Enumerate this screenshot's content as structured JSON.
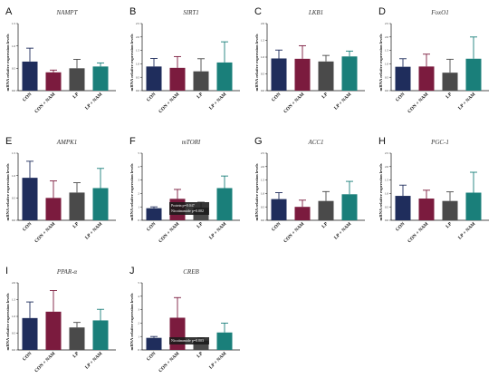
{
  "colors": {
    "CON": "#1f2d5c",
    "CON + NAM": "#7b1b3e",
    "LP": "#4a4a4a",
    "LP + NAM": "#1a7f7a"
  },
  "chart_data": [
    {
      "type": "bar",
      "letter": "A",
      "gene": "NAMPT",
      "ylabel": "mRNA relative expression levels",
      "categories": [
        "CON",
        "CON + NAM",
        "LP",
        "LP + NAM"
      ],
      "ylim": [
        0,
        1.5
      ],
      "yticks": [
        "0.0",
        "0.5",
        "1.0",
        "1.5"
      ],
      "values": [
        0.65,
        0.41,
        0.5,
        0.54
      ],
      "errors": [
        0.3,
        0.05,
        0.2,
        0.08
      ]
    },
    {
      "type": "bar",
      "letter": "B",
      "gene": "SIRT1",
      "ylabel": "mRNA relative expression levels",
      "categories": [
        "CON",
        "CON + NAM",
        "LP",
        "LP + NAM"
      ],
      "ylim": [
        0,
        2.5
      ],
      "yticks": [
        "0.0",
        "0.5",
        "1.0",
        "1.5",
        "2.0",
        "2.5"
      ],
      "values": [
        0.9,
        0.85,
        0.72,
        1.05
      ],
      "errors": [
        0.3,
        0.42,
        0.47,
        0.77
      ]
    },
    {
      "type": "bar",
      "letter": "C",
      "gene": "LKB1",
      "ylabel": "mRNA relative expression levels",
      "categories": [
        "CON",
        "CON + NAM",
        "LP",
        "LP + NAM"
      ],
      "ylim": [
        0,
        2.0
      ],
      "yticks": [
        "0.0",
        "0.5",
        "1.0",
        "1.5",
        "2.0"
      ],
      "values": [
        0.96,
        0.95,
        0.87,
        1.02
      ],
      "errors": [
        0.25,
        0.39,
        0.18,
        0.16
      ]
    },
    {
      "type": "bar",
      "letter": "D",
      "gene": "FoxO1",
      "ylabel": "mRNA relative expression levels",
      "categories": [
        "CON",
        "CON + NAM",
        "LP",
        "LP + NAM"
      ],
      "ylim": [
        0,
        2.5
      ],
      "yticks": [
        "0.0",
        "0.5",
        "1.0",
        "1.5",
        "2.0",
        "2.5"
      ],
      "values": [
        0.89,
        0.9,
        0.67,
        1.19
      ],
      "errors": [
        0.3,
        0.46,
        0.5,
        0.81
      ]
    },
    {
      "type": "bar",
      "letter": "E",
      "gene": "AMPK1",
      "ylabel": "mRNA relative expression levels",
      "categories": [
        "CON",
        "CON + NAM",
        "LP",
        "LP + NAM"
      ],
      "ylim": [
        0,
        1.5
      ],
      "yticks": [
        "0.0",
        "0.5",
        "1.0",
        "1.5"
      ],
      "values": [
        0.95,
        0.5,
        0.62,
        0.72
      ],
      "errors": [
        0.37,
        0.38,
        0.22,
        0.44
      ]
    },
    {
      "type": "bar",
      "letter": "F",
      "gene": "mTORI",
      "ylabel": "mRNA relative expression levels",
      "categories": [
        "CON",
        "CON + NAM",
        "LP",
        "LP + NAM"
      ],
      "ylim": [
        0,
        5
      ],
      "yticks": [
        "0",
        "1",
        "2",
        "3",
        "4",
        "5"
      ],
      "values": [
        0.9,
        1.6,
        0.95,
        2.4
      ],
      "errors": [
        0.1,
        0.7,
        0.4,
        0.9
      ],
      "annotations": [
        "Protein p=0.047",
        "Nicotinamide p=0.002"
      ]
    },
    {
      "type": "bar",
      "letter": "G",
      "gene": "ACC1",
      "ylabel": "mRNA relative expression levels",
      "categories": [
        "CON",
        "CON + NAM",
        "LP",
        "LP + NAM"
      ],
      "ylim": [
        0,
        2.5
      ],
      "yticks": [
        "0.0",
        "0.5",
        "1.0",
        "1.5",
        "2.0",
        "2.5"
      ],
      "values": [
        0.79,
        0.5,
        0.72,
        0.97
      ],
      "errors": [
        0.24,
        0.25,
        0.35,
        0.48
      ]
    },
    {
      "type": "bar",
      "letter": "H",
      "gene": "PGC-1",
      "ylabel": "mRNA relative expression levels",
      "categories": [
        "CON",
        "CON + NAM",
        "LP",
        "LP + NAM"
      ],
      "ylim": [
        0,
        2.5
      ],
      "yticks": [
        "0.0",
        "0.5",
        "1.0",
        "1.5",
        "2.0",
        "2.5"
      ],
      "values": [
        0.91,
        0.81,
        0.72,
        1.03
      ],
      "errors": [
        0.4,
        0.31,
        0.34,
        0.76
      ]
    },
    {
      "type": "bar",
      "letter": "I",
      "gene": "PPAR-α",
      "ylabel": "mRNA relative expression levels",
      "categories": [
        "CON",
        "CON + NAM",
        "LP",
        "LP + NAM"
      ],
      "ylim": [
        0,
        2.0
      ],
      "yticks": [
        "0.0",
        "0.5",
        "1.0",
        "1.5",
        "2.0"
      ],
      "values": [
        0.95,
        1.14,
        0.67,
        0.88
      ],
      "errors": [
        0.48,
        0.63,
        0.15,
        0.33
      ]
    },
    {
      "type": "bar",
      "letter": "J",
      "gene": "CREB",
      "ylabel": "mRNA relative expression levels",
      "categories": [
        "CON",
        "CON + NAM",
        "LP",
        "LP + NAM"
      ],
      "ylim": [
        0,
        5
      ],
      "yticks": [
        "0",
        "1",
        "2",
        "3",
        "4",
        "5"
      ],
      "values": [
        0.9,
        2.4,
        0.7,
        1.3
      ],
      "errors": [
        0.1,
        1.5,
        0.2,
        0.7
      ],
      "annotations": [
        "Nicotinamide p=0.003"
      ]
    }
  ]
}
